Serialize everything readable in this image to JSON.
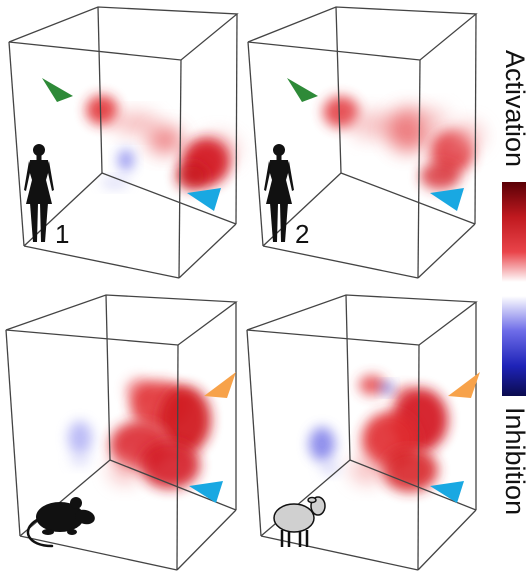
{
  "colorbar": {
    "top_label": "Activation",
    "bottom_label": "Inhibition",
    "activation_gradient": [
      "#5a0006",
      "#c0191f",
      "#e9444a",
      "#ffffff"
    ],
    "inhibition_gradient": [
      "#ffffff",
      "#6d6ce8",
      "#1e23b8",
      "#0b0b4e"
    ]
  },
  "panels": [
    {
      "id": "human-1",
      "subject": "human-female-icon",
      "number": "1",
      "arrows": [
        "green",
        "blue"
      ]
    },
    {
      "id": "human-2",
      "subject": "human-female-icon",
      "number": "2",
      "arrows": [
        "green",
        "blue"
      ]
    },
    {
      "id": "mouse",
      "subject": "mouse-icon",
      "number": "",
      "arrows": [
        "orange",
        "blue"
      ]
    },
    {
      "id": "sheep",
      "subject": "sheep-icon",
      "number": "",
      "arrows": [
        "orange",
        "blue"
      ]
    }
  ],
  "colors": {
    "activation": "#e0262c",
    "inhibition": "#5b5be6",
    "arrow_green": "#2e8a38",
    "arrow_blue": "#19a8e2",
    "arrow_orange": "#f7a24a",
    "box_line": "#444444",
    "sheep_fill": "#d0d0d0"
  }
}
